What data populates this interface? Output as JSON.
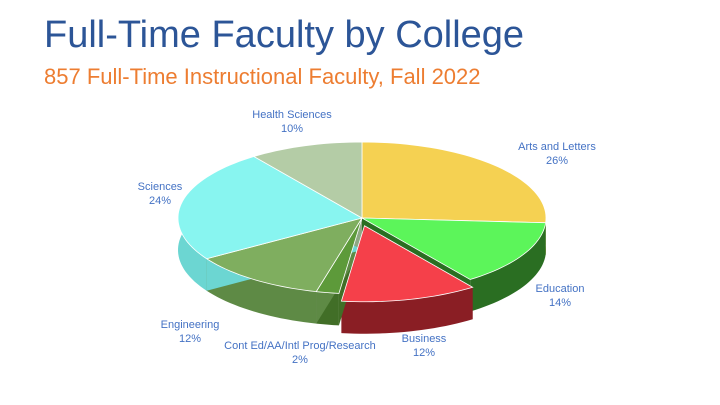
{
  "chart_data": {
    "type": "pie",
    "title": "Full-Time Faculty by College",
    "subtitle": "857 Full-Time Instructional Faculty, Fall 2022",
    "slices": [
      {
        "label": "Arts and Letters",
        "value": 26,
        "value_label": "26%",
        "color": "#f5d152",
        "side": "#c9a62e"
      },
      {
        "label": "Education",
        "value": 14,
        "value_label": "14%",
        "color": "#5cf55a",
        "side": "#2a6e22"
      },
      {
        "label": "Business",
        "value": 12,
        "value_label": "12%",
        "color": "#f5404a",
        "side": "#8a1e24",
        "exploded": true
      },
      {
        "label": "Cont Ed/AA/Intl Prog/Research",
        "value": 2,
        "value_label": "2%",
        "color": "#5d9a3a",
        "side": "#416e27"
      },
      {
        "label": "Engineering",
        "value": 12,
        "value_label": "12%",
        "color": "#7fae5f",
        "side": "#5e8a45"
      },
      {
        "label": "Sciences",
        "value": 24,
        "value_label": "24%",
        "color": "#88f5f0",
        "side": "#6cd6d2"
      },
      {
        "label": "Health Sciences",
        "value": 10,
        "value_label": "10%",
        "color": "#b4cca6",
        "side": "#8ea883"
      }
    ],
    "start": "top",
    "direction": "clockwise",
    "legend": "none"
  }
}
